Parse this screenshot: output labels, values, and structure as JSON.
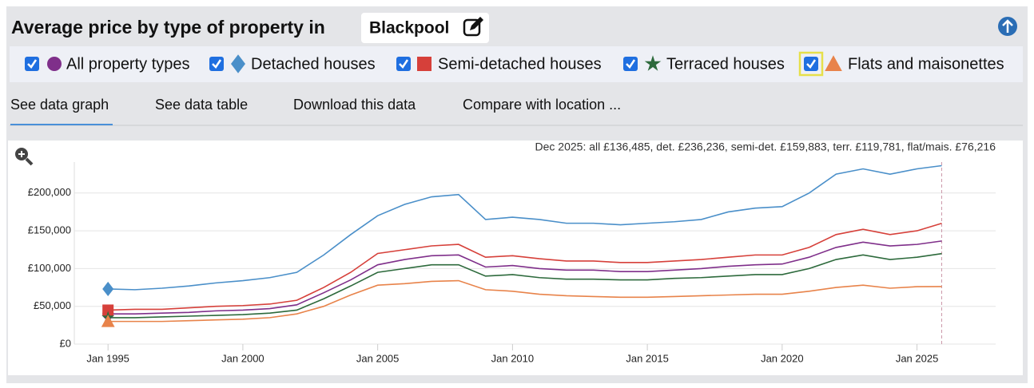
{
  "ui": {
    "title": "Average price by type of property in",
    "location": "Blackpool",
    "tabs": [
      "See data graph",
      "See data table",
      "Download this data",
      "Compare with location ..."
    ]
  },
  "chart_data": {
    "type": "line",
    "annotation": "Dec 2025: all £136,485, det. £236,236, semi-det. £159,883, terr. £119,781, flat/mais. £76,216",
    "x": [
      "Jan 1995",
      "Jan 1996",
      "Jan 1997",
      "Jan 1998",
      "Jan 1999",
      "Jan 2000",
      "Jan 2001",
      "Jan 2002",
      "Jan 2003",
      "Jan 2004",
      "Jan 2005",
      "Jan 2006",
      "Jan 2007",
      "Jan 2008",
      "Jan 2009",
      "Jan 2010",
      "Jan 2011",
      "Jan 2012",
      "Jan 2013",
      "Jan 2014",
      "Jan 2015",
      "Jan 2016",
      "Jan 2017",
      "Jan 2018",
      "Jan 2019",
      "Jan 2020",
      "Jan 2021",
      "Jan 2022",
      "Jan 2023",
      "Jan 2024",
      "Jan 2025",
      "Dec 2025"
    ],
    "series": [
      {
        "name": "All property types",
        "color": "#7f2f8a",
        "marker": "circle",
        "values": [
          40000,
          40000,
          41000,
          42000,
          44000,
          45000,
          47000,
          52000,
          68000,
          85000,
          105000,
          112000,
          117000,
          118000,
          102000,
          104000,
          100000,
          98000,
          98000,
          96000,
          96000,
          98000,
          100000,
          103000,
          105000,
          106000,
          115000,
          128000,
          135000,
          130000,
          132000,
          136485
        ]
      },
      {
        "name": "Detached houses",
        "color": "#4a8fc9",
        "marker": "diamond",
        "values": [
          73000,
          72000,
          74000,
          77000,
          81000,
          84000,
          88000,
          95000,
          118000,
          145000,
          170000,
          185000,
          195000,
          198000,
          165000,
          168000,
          165000,
          160000,
          160000,
          158000,
          160000,
          162000,
          165000,
          175000,
          180000,
          182000,
          200000,
          225000,
          232000,
          225000,
          232000,
          236236
        ]
      },
      {
        "name": "Semi-detached houses",
        "color": "#d6403a",
        "marker": "square",
        "values": [
          45000,
          46000,
          46000,
          48000,
          50000,
          51000,
          53000,
          58000,
          75000,
          95000,
          120000,
          125000,
          130000,
          132000,
          115000,
          117000,
          113000,
          110000,
          110000,
          108000,
          108000,
          110000,
          112000,
          115000,
          118000,
          118000,
          128000,
          145000,
          152000,
          145000,
          150000,
          159883
        ]
      },
      {
        "name": "Terraced houses",
        "color": "#2d6a3c",
        "marker": "star",
        "values": [
          35000,
          35000,
          36000,
          37000,
          38000,
          39000,
          41000,
          45000,
          60000,
          77000,
          95000,
          100000,
          105000,
          105000,
          90000,
          92000,
          88000,
          86000,
          86000,
          85000,
          85000,
          87000,
          88000,
          90000,
          92000,
          92000,
          100000,
          112000,
          118000,
          112000,
          115000,
          119781
        ]
      },
      {
        "name": "Flats and maisonettes",
        "color": "#e8834a",
        "marker": "triangle",
        "values": [
          30000,
          30000,
          30000,
          31000,
          32000,
          33000,
          35000,
          40000,
          50000,
          65000,
          78000,
          80000,
          83000,
          84000,
          72000,
          70000,
          66000,
          64000,
          63000,
          62000,
          62000,
          63000,
          64000,
          65000,
          66000,
          66000,
          70000,
          75000,
          78000,
          74000,
          76000,
          76216
        ]
      }
    ],
    "xlim": [
      "Oct 1993",
      "Dec 2027"
    ],
    "xticks": [
      "Jan 1995",
      "Jan 2000",
      "Jan 2005",
      "Jan 2010",
      "Jan 2015",
      "Jan 2020",
      "Jan 2025"
    ],
    "ylim": [
      0,
      241000
    ],
    "yticks": [
      {
        "value": 0,
        "label": "£0"
      },
      {
        "value": 50000,
        "label": "£50,000"
      },
      {
        "value": 100000,
        "label": "£100,000"
      },
      {
        "value": 150000,
        "label": "£150,000"
      },
      {
        "value": 200000,
        "label": "£200,000"
      }
    ],
    "grid": true
  }
}
